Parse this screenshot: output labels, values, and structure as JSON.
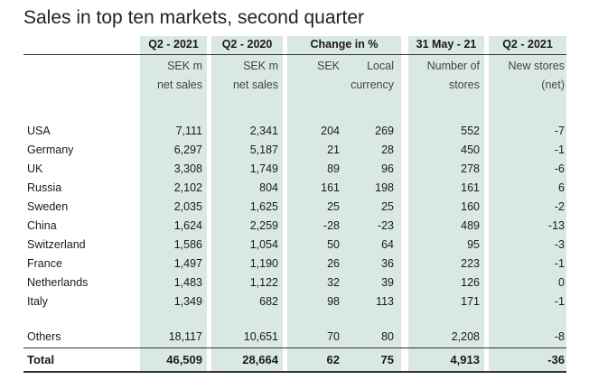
{
  "title": "Sales in top ten markets, second quarter",
  "headers": {
    "q2_2021": "Q2 - 2021",
    "q2_2020": "Q2 - 2020",
    "change": "Change in %",
    "may": "31 May - 21",
    "q2_2021_stores": "Q2 - 2021"
  },
  "subheaders": {
    "sek_m_1": [
      "SEK m",
      "net sales"
    ],
    "sek_m_2": [
      "SEK m",
      "net sales"
    ],
    "sek": [
      "SEK"
    ],
    "local": [
      "Local",
      "currency"
    ],
    "stores": [
      "Number of",
      "stores"
    ],
    "new_stores": [
      "New stores",
      "(net)"
    ]
  },
  "rows": [
    {
      "market": "USA",
      "q2_2021": "7,111",
      "q2_2020": "2,341",
      "sek": "204",
      "local": "269",
      "stores": "552",
      "new": "-7"
    },
    {
      "market": "Germany",
      "q2_2021": "6,297",
      "q2_2020": "5,187",
      "sek": "21",
      "local": "28",
      "stores": "450",
      "new": "-1"
    },
    {
      "market": "UK",
      "q2_2021": "3,308",
      "q2_2020": "1,749",
      "sek": "89",
      "local": "96",
      "stores": "278",
      "new": "-6"
    },
    {
      "market": "Russia",
      "q2_2021": "2,102",
      "q2_2020": "804",
      "sek": "161",
      "local": "198",
      "stores": "161",
      "new": "6"
    },
    {
      "market": "Sweden",
      "q2_2021": "2,035",
      "q2_2020": "1,625",
      "sek": "25",
      "local": "25",
      "stores": "160",
      "new": "-2"
    },
    {
      "market": "China",
      "q2_2021": "1,624",
      "q2_2020": "2,259",
      "sek": "-28",
      "local": "-23",
      "stores": "489",
      "new": "-13"
    },
    {
      "market": "Switzerland",
      "q2_2021": "1,586",
      "q2_2020": "1,054",
      "sek": "50",
      "local": "64",
      "stores": "95",
      "new": "-3"
    },
    {
      "market": "France",
      "q2_2021": "1,497",
      "q2_2020": "1,190",
      "sek": "26",
      "local": "36",
      "stores": "223",
      "new": "-1"
    },
    {
      "market": "Netherlands",
      "q2_2021": "1,483",
      "q2_2020": "1,122",
      "sek": "32",
      "local": "39",
      "stores": "126",
      "new": "0"
    },
    {
      "market": "Italy",
      "q2_2021": "1,349",
      "q2_2020": "682",
      "sek": "98",
      "local": "113",
      "stores": "171",
      "new": "-1"
    }
  ],
  "others": {
    "market": "Others",
    "q2_2021": "18,117",
    "q2_2020": "10,651",
    "sek": "70",
    "local": "80",
    "stores": "2,208",
    "new": "-8"
  },
  "total": {
    "market": "Total",
    "q2_2021": "46,509",
    "q2_2020": "28,664",
    "sek": "62",
    "local": "75",
    "stores": "4,913",
    "new": "-36"
  },
  "colors": {
    "band": "#d9e8e2",
    "rule": "#333333"
  }
}
